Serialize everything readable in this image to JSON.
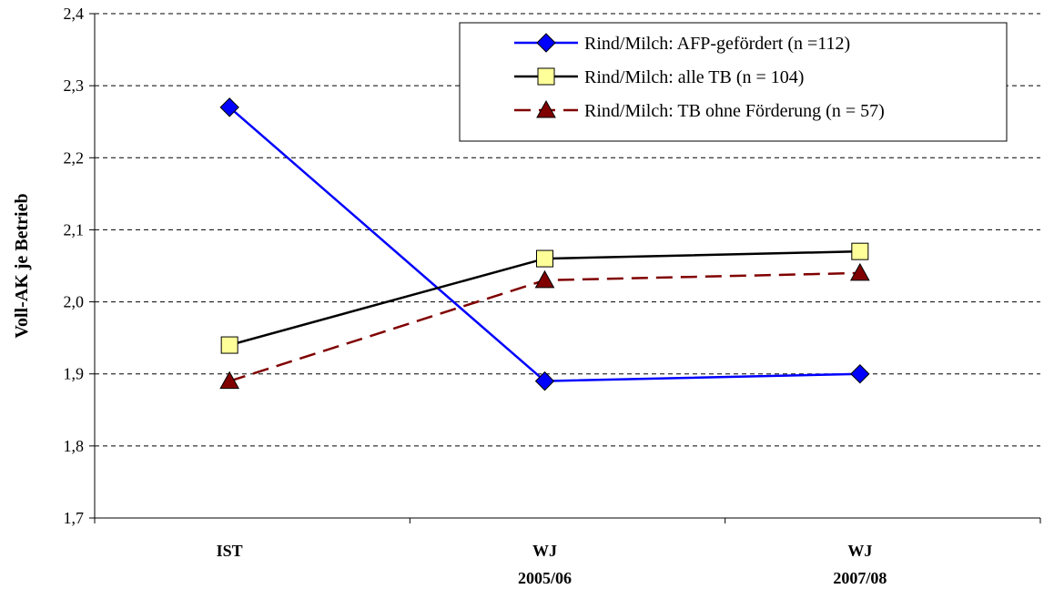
{
  "chart_data": {
    "type": "line",
    "categories": [
      [
        "IST"
      ],
      [
        "WJ",
        "2005/06"
      ],
      [
        "WJ",
        "2007/08"
      ]
    ],
    "ylabel": "Voll-AK je Betrieb",
    "ylim": [
      1.7,
      2.4
    ],
    "yticks": [
      "1,7",
      "1,8",
      "1,9",
      "2,0",
      "2,1",
      "2,2",
      "2,3",
      "2,4"
    ],
    "grid": "horizontal dashed",
    "legend_position": "top-right",
    "series": [
      {
        "name": "Rind/Milch: AFP-gefördert (n =112)",
        "values": [
          2.27,
          1.89,
          1.9
        ],
        "color": "#0000ff",
        "marker": "diamond",
        "marker_fill": "#0000ff",
        "dash": false
      },
      {
        "name": "Rind/Milch: alle TB (n = 104)",
        "values": [
          1.94,
          2.06,
          2.07
        ],
        "color": "#000000",
        "marker": "square",
        "marker_fill": "#ffff99",
        "dash": false
      },
      {
        "name": "Rind/Milch: TB ohne Förderung (n = 57)",
        "values": [
          1.89,
          2.03,
          2.04
        ],
        "color": "#800000",
        "marker": "triangle",
        "marker_fill": "#800000",
        "dash": true
      }
    ]
  }
}
